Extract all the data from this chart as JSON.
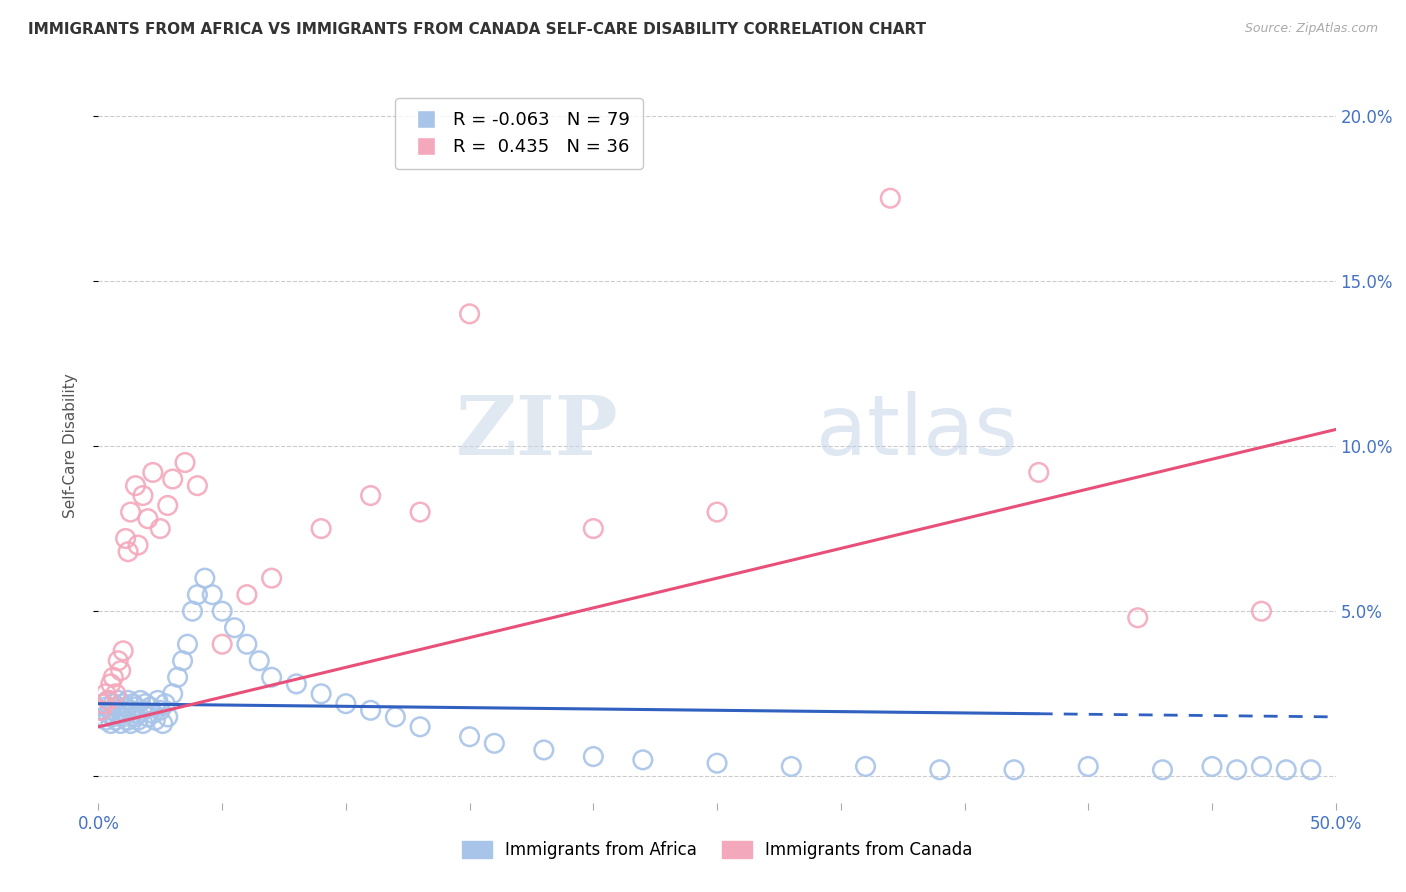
{
  "title": "IMMIGRANTS FROM AFRICA VS IMMIGRANTS FROM CANADA SELF-CARE DISABILITY CORRELATION CHART",
  "source": "Source: ZipAtlas.com",
  "ylabel": "Self-Care Disability",
  "legend_africa": "Immigrants from Africa",
  "legend_canada": "Immigrants from Canada",
  "R_africa": -0.063,
  "N_africa": 79,
  "R_canada": 0.435,
  "N_canada": 36,
  "africa_color": "#a8c4e8",
  "canada_color": "#f4a8bc",
  "trendline_africa_color": "#3060c0",
  "trendline_canada_color": "#e8507a",
  "watermark_zip": "ZIP",
  "watermark_atlas": "atlas",
  "xmin": 0.0,
  "xmax": 0.5,
  "ymin": -0.008,
  "ymax": 0.208,
  "yticks": [
    0.0,
    0.05,
    0.1,
    0.15,
    0.2
  ],
  "ytick_labels": [
    "",
    "5.0%",
    "10.0%",
    "15.0%",
    "20.0%"
  ],
  "africa_x": [
    0.001,
    0.002,
    0.002,
    0.003,
    0.003,
    0.004,
    0.004,
    0.005,
    0.005,
    0.006,
    0.006,
    0.007,
    0.007,
    0.008,
    0.008,
    0.009,
    0.009,
    0.01,
    0.01,
    0.011,
    0.011,
    0.012,
    0.012,
    0.013,
    0.013,
    0.014,
    0.015,
    0.015,
    0.016,
    0.016,
    0.017,
    0.018,
    0.018,
    0.019,
    0.02,
    0.021,
    0.022,
    0.023,
    0.024,
    0.025,
    0.026,
    0.027,
    0.028,
    0.03,
    0.032,
    0.034,
    0.036,
    0.038,
    0.04,
    0.043,
    0.046,
    0.05,
    0.055,
    0.06,
    0.065,
    0.07,
    0.08,
    0.09,
    0.1,
    0.11,
    0.12,
    0.13,
    0.15,
    0.16,
    0.18,
    0.2,
    0.22,
    0.25,
    0.28,
    0.31,
    0.34,
    0.37,
    0.4,
    0.43,
    0.45,
    0.46,
    0.47,
    0.48,
    0.49
  ],
  "africa_y": [
    0.02,
    0.018,
    0.022,
    0.017,
    0.021,
    0.019,
    0.023,
    0.016,
    0.02,
    0.018,
    0.022,
    0.017,
    0.021,
    0.019,
    0.023,
    0.016,
    0.02,
    0.018,
    0.022,
    0.019,
    0.021,
    0.017,
    0.023,
    0.016,
    0.02,
    0.022,
    0.018,
    0.021,
    0.019,
    0.017,
    0.023,
    0.02,
    0.016,
    0.022,
    0.018,
    0.021,
    0.019,
    0.017,
    0.023,
    0.02,
    0.016,
    0.022,
    0.018,
    0.025,
    0.03,
    0.035,
    0.04,
    0.05,
    0.055,
    0.06,
    0.055,
    0.05,
    0.045,
    0.04,
    0.035,
    0.03,
    0.028,
    0.025,
    0.022,
    0.02,
    0.018,
    0.015,
    0.012,
    0.01,
    0.008,
    0.006,
    0.005,
    0.004,
    0.003,
    0.003,
    0.002,
    0.002,
    0.003,
    0.002,
    0.003,
    0.002,
    0.003,
    0.002,
    0.002
  ],
  "canada_x": [
    0.001,
    0.002,
    0.003,
    0.004,
    0.005,
    0.006,
    0.007,
    0.008,
    0.009,
    0.01,
    0.011,
    0.012,
    0.013,
    0.015,
    0.016,
    0.018,
    0.02,
    0.022,
    0.025,
    0.028,
    0.03,
    0.035,
    0.04,
    0.05,
    0.06,
    0.07,
    0.09,
    0.11,
    0.13,
    0.15,
    0.2,
    0.25,
    0.32,
    0.38,
    0.42,
    0.47
  ],
  "canada_y": [
    0.02,
    0.022,
    0.025,
    0.023,
    0.028,
    0.03,
    0.025,
    0.035,
    0.032,
    0.038,
    0.072,
    0.068,
    0.08,
    0.088,
    0.07,
    0.085,
    0.078,
    0.092,
    0.075,
    0.082,
    0.09,
    0.095,
    0.088,
    0.04,
    0.055,
    0.06,
    0.075,
    0.085,
    0.08,
    0.14,
    0.075,
    0.08,
    0.175,
    0.092,
    0.048,
    0.05
  ]
}
